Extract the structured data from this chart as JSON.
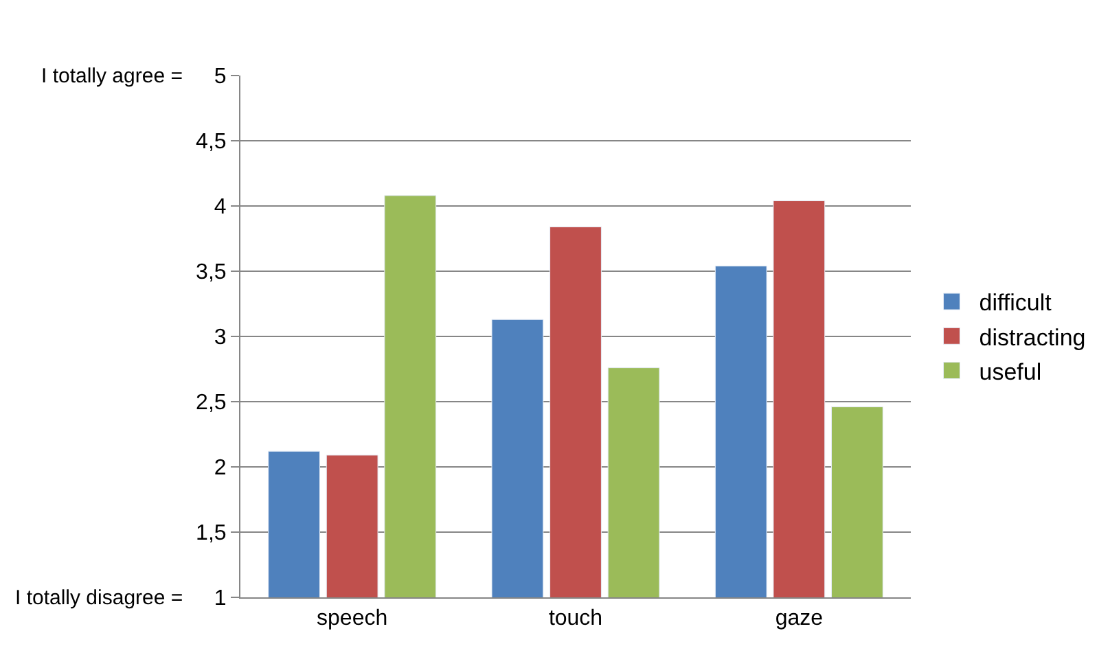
{
  "chart_data": {
    "type": "bar",
    "categories": [
      "speech",
      "touch",
      "gaze"
    ],
    "series": [
      {
        "name": "difficult",
        "color": "#4f81bd",
        "values": [
          2.12,
          3.13,
          3.54
        ]
      },
      {
        "name": "distracting",
        "color": "#c0504d",
        "values": [
          2.09,
          3.84,
          4.04
        ]
      },
      {
        "name": "useful",
        "color": "#9bbb59",
        "values": [
          4.08,
          2.76,
          2.46
        ]
      }
    ],
    "ylim": [
      1,
      5
    ],
    "yticks": [
      1,
      {
        "value": 1.5,
        "label": "1,5"
      },
      2,
      {
        "value": 2.5,
        "label": "2,5"
      },
      3,
      {
        "value": 3.5,
        "label": "3,5"
      },
      4,
      {
        "value": 4.5,
        "label": "4,5"
      },
      5
    ],
    "annotations": [
      "I totally agree =",
      "I totally disagree ="
    ],
    "grid": "y",
    "legend": "right"
  }
}
